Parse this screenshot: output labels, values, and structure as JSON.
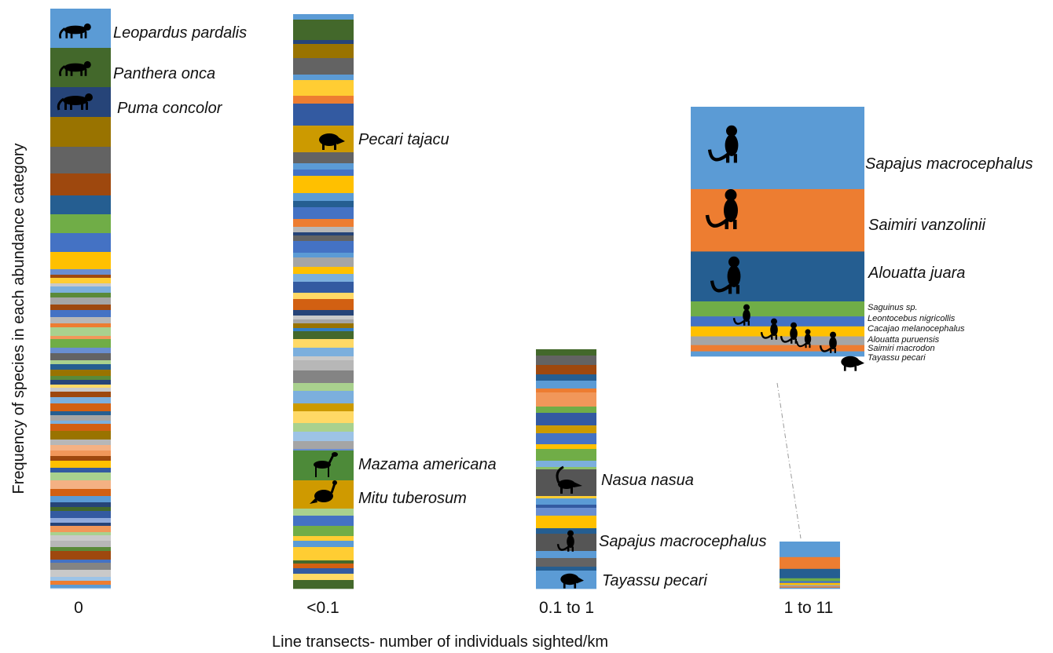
{
  "chart_data": {
    "type": "bar",
    "stacked": true,
    "xlabel": "Line transects- number of individuals sighted/km",
    "ylabel": "Frequency of species in each abundance category",
    "categories": [
      "0",
      "<0.1",
      "0.1 to 1",
      "1 to 11"
    ],
    "bars": [
      {
        "category": "0",
        "segment_count": 66,
        "labeled_species": [
          {
            "name": "Leopardus pardalis",
            "icon": "ocelot-silhouette-icon",
            "color": "#7fabdc"
          },
          {
            "name": "Panthera onca",
            "icon": "jaguar-silhouette-icon",
            "color": "#426b2a"
          },
          {
            "name": "Puma concolor",
            "icon": "puma-silhouette-icon",
            "color": "#213f73"
          }
        ]
      },
      {
        "category": "<0.1",
        "segment_count": 61,
        "labeled_species": [
          {
            "name": "Pecari tajacu",
            "icon": "peccary-silhouette-icon",
            "color": "#cf9a00"
          },
          {
            "name": "Mazama americana",
            "icon": "deer-silhouette-icon",
            "color": "#4d8a39"
          },
          {
            "name": "Mitu tuberosum",
            "icon": "curassow-silhouette-icon",
            "color": "#cf9a00"
          }
        ]
      },
      {
        "category": "0.1 to 1",
        "segment_count": 40,
        "labeled_species": [
          {
            "name": "Nasua nasua",
            "icon": "coati-silhouette-icon",
            "color": "#555555"
          },
          {
            "name": "Sapajus macrocephalus",
            "icon": "capuchin-silhouette-icon",
            "color": "#555555"
          },
          {
            "name": "Tayassu pecari",
            "icon": "peccary-silhouette-icon",
            "color": "#5b9bd5"
          }
        ]
      },
      {
        "category": "1 to 11",
        "segment_count": 9,
        "species": [
          {
            "name": "Sapajus macrocephalus",
            "value": 0.33,
            "color": "#5b9bd5",
            "icon": "capuchin-silhouette-icon"
          },
          {
            "name": "Saimiri vanzolinii",
            "value": 0.25,
            "color": "#ed7d31",
            "icon": "squirrel-monkey-silhouette-icon"
          },
          {
            "name": "Alouatta juara",
            "value": 0.2,
            "color": "#255e91",
            "icon": "howler-monkey-silhouette-icon"
          },
          {
            "name": "Saguinus sp.",
            "value": 0.06,
            "color": "#70ad47",
            "icon": "tamarin-silhouette-icon"
          },
          {
            "name": "Leontocebus nigricollis",
            "value": 0.04,
            "color": "#4472c4",
            "icon": "tamarin-silhouette-icon"
          },
          {
            "name": "Cacajao melanocephalus",
            "value": 0.04,
            "color": "#ffc000",
            "icon": "uakari-silhouette-icon"
          },
          {
            "name": "Alouatta puruensis",
            "value": 0.035,
            "color": "#a5a5a5",
            "icon": "howler-monkey-silhouette-icon"
          },
          {
            "name": "Saimiri macrodon",
            "value": 0.025,
            "color": "#ed7d31",
            "icon": "squirrel-monkey-silhouette-icon"
          },
          {
            "name": "Tayassu pecari",
            "value": 0.02,
            "color": "#5b9bd5",
            "icon": "peccary-silhouette-icon"
          }
        ],
        "inset": "enlarged view of the 1 to 11 bar"
      }
    ],
    "palette": [
      "#5b9bd5",
      "#ed7d31",
      "#a5a5a5",
      "#ffc000",
      "#4472c4",
      "#70ad47",
      "#255e91",
      "#9e480e",
      "#636363",
      "#997300",
      "#264478",
      "#43682b",
      "#7cafdd",
      "#f1975a",
      "#b7b7b7",
      "#ffcd33",
      "#698ed0",
      "#8cc168",
      "#327dc2",
      "#d26012",
      "#848484",
      "#cc9a00",
      "#335aa1",
      "#5a8a39",
      "#9dc3e6",
      "#f4b183",
      "#c9c9c9",
      "#ffd966",
      "#8faadc",
      "#a9d18e"
    ]
  }
}
